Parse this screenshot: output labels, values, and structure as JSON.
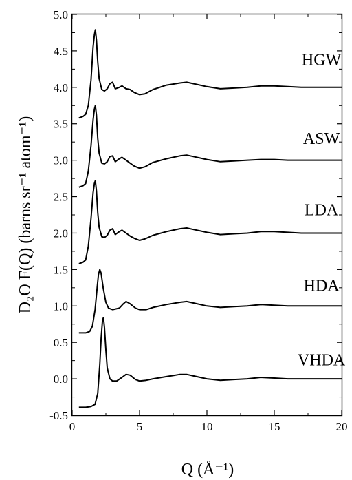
{
  "chart_data": {
    "type": "line",
    "xlabel": "Q (Å⁻¹)",
    "ylabel": "D₂O F(Q) (barns sr⁻¹ atom⁻¹)",
    "xlim": [
      0,
      20
    ],
    "ylim": [
      -0.5,
      5.0
    ],
    "x_ticks": [
      0,
      5,
      10,
      15,
      20
    ],
    "x_tick_labels": [
      "0",
      "5",
      "10",
      "15",
      "20"
    ],
    "y_ticks": [
      -0.5,
      0.0,
      0.5,
      1.0,
      1.5,
      2.0,
      2.5,
      3.0,
      3.5,
      4.0,
      4.5,
      5.0
    ],
    "y_tick_labels": [
      "-0.5",
      "0.0",
      "0.5",
      "1.0",
      "1.5",
      "2.0",
      "2.5",
      "3.0",
      "3.5",
      "4.0",
      "4.5",
      "5.0"
    ],
    "grid": false,
    "legend": "none",
    "series": [
      {
        "name": "HGW",
        "label_at": {
          "x": 18.5,
          "y": 4.38
        },
        "points": [
          [
            0.5,
            3.58
          ],
          [
            0.8,
            3.6
          ],
          [
            1.0,
            3.63
          ],
          [
            1.2,
            3.75
          ],
          [
            1.4,
            4.1
          ],
          [
            1.55,
            4.55
          ],
          [
            1.65,
            4.72
          ],
          [
            1.72,
            4.79
          ],
          [
            1.8,
            4.65
          ],
          [
            1.9,
            4.35
          ],
          [
            2.0,
            4.12
          ],
          [
            2.2,
            3.97
          ],
          [
            2.4,
            3.95
          ],
          [
            2.6,
            3.98
          ],
          [
            2.8,
            4.05
          ],
          [
            3.0,
            4.07
          ],
          [
            3.2,
            3.98
          ],
          [
            3.5,
            4.0
          ],
          [
            3.7,
            4.02
          ],
          [
            4.0,
            3.98
          ],
          [
            4.3,
            3.97
          ],
          [
            4.6,
            3.93
          ],
          [
            5.0,
            3.9
          ],
          [
            5.4,
            3.91
          ],
          [
            6.0,
            3.97
          ],
          [
            7.0,
            4.03
          ],
          [
            8.0,
            4.06
          ],
          [
            8.5,
            4.07
          ],
          [
            9.0,
            4.05
          ],
          [
            10.0,
            4.01
          ],
          [
            11.0,
            3.98
          ],
          [
            12.0,
            3.99
          ],
          [
            13.0,
            4.0
          ],
          [
            14.0,
            4.02
          ],
          [
            15.0,
            4.02
          ],
          [
            16.0,
            4.01
          ],
          [
            17.0,
            4.0
          ],
          [
            18.0,
            4.0
          ],
          [
            19.0,
            4.0
          ],
          [
            20.0,
            4.0
          ]
        ]
      },
      {
        "name": "ASW",
        "label_at": {
          "x": 18.5,
          "y": 3.3
        },
        "points": [
          [
            0.5,
            2.63
          ],
          [
            0.8,
            2.65
          ],
          [
            1.0,
            2.68
          ],
          [
            1.2,
            2.85
          ],
          [
            1.4,
            3.2
          ],
          [
            1.55,
            3.55
          ],
          [
            1.65,
            3.7
          ],
          [
            1.72,
            3.75
          ],
          [
            1.8,
            3.62
          ],
          [
            1.9,
            3.3
          ],
          [
            2.0,
            3.1
          ],
          [
            2.2,
            2.96
          ],
          [
            2.4,
            2.95
          ],
          [
            2.6,
            2.98
          ],
          [
            2.8,
            3.05
          ],
          [
            3.0,
            3.06
          ],
          [
            3.2,
            2.98
          ],
          [
            3.5,
            3.02
          ],
          [
            3.7,
            3.04
          ],
          [
            4.0,
            3.0
          ],
          [
            4.3,
            2.96
          ],
          [
            4.6,
            2.92
          ],
          [
            5.0,
            2.89
          ],
          [
            5.4,
            2.91
          ],
          [
            6.0,
            2.97
          ],
          [
            7.0,
            3.02
          ],
          [
            8.0,
            3.06
          ],
          [
            8.5,
            3.07
          ],
          [
            9.0,
            3.05
          ],
          [
            10.0,
            3.01
          ],
          [
            11.0,
            2.98
          ],
          [
            12.0,
            2.99
          ],
          [
            13.0,
            3.0
          ],
          [
            14.0,
            3.01
          ],
          [
            15.0,
            3.01
          ],
          [
            16.0,
            3.0
          ],
          [
            17.0,
            3.0
          ],
          [
            18.0,
            3.0
          ],
          [
            19.0,
            3.0
          ],
          [
            20.0,
            3.0
          ]
        ]
      },
      {
        "name": "LDA",
        "label_at": {
          "x": 18.5,
          "y": 2.32
        },
        "points": [
          [
            0.5,
            1.58
          ],
          [
            0.8,
            1.6
          ],
          [
            1.0,
            1.63
          ],
          [
            1.2,
            1.82
          ],
          [
            1.4,
            2.2
          ],
          [
            1.55,
            2.55
          ],
          [
            1.65,
            2.68
          ],
          [
            1.72,
            2.72
          ],
          [
            1.8,
            2.58
          ],
          [
            1.9,
            2.28
          ],
          [
            2.0,
            2.08
          ],
          [
            2.2,
            1.95
          ],
          [
            2.4,
            1.94
          ],
          [
            2.6,
            1.97
          ],
          [
            2.8,
            2.04
          ],
          [
            3.0,
            2.06
          ],
          [
            3.2,
            1.98
          ],
          [
            3.5,
            2.02
          ],
          [
            3.7,
            2.04
          ],
          [
            4.0,
            2.0
          ],
          [
            4.3,
            1.96
          ],
          [
            4.6,
            1.93
          ],
          [
            5.0,
            1.9
          ],
          [
            5.4,
            1.92
          ],
          [
            6.0,
            1.97
          ],
          [
            7.0,
            2.02
          ],
          [
            8.0,
            2.06
          ],
          [
            8.5,
            2.07
          ],
          [
            9.0,
            2.05
          ],
          [
            10.0,
            2.01
          ],
          [
            11.0,
            1.98
          ],
          [
            12.0,
            1.99
          ],
          [
            13.0,
            2.0
          ],
          [
            14.0,
            2.02
          ],
          [
            15.0,
            2.02
          ],
          [
            16.0,
            2.01
          ],
          [
            17.0,
            2.0
          ],
          [
            18.0,
            2.0
          ],
          [
            19.0,
            2.0
          ],
          [
            20.0,
            2.0
          ]
        ]
      },
      {
        "name": "HDA",
        "label_at": {
          "x": 18.5,
          "y": 1.28
        },
        "points": [
          [
            0.5,
            0.63
          ],
          [
            1.0,
            0.63
          ],
          [
            1.3,
            0.65
          ],
          [
            1.5,
            0.72
          ],
          [
            1.7,
            0.95
          ],
          [
            1.85,
            1.25
          ],
          [
            1.95,
            1.43
          ],
          [
            2.05,
            1.5
          ],
          [
            2.15,
            1.45
          ],
          [
            2.3,
            1.25
          ],
          [
            2.5,
            1.05
          ],
          [
            2.7,
            0.97
          ],
          [
            3.0,
            0.95
          ],
          [
            3.5,
            0.97
          ],
          [
            3.8,
            1.03
          ],
          [
            4.0,
            1.06
          ],
          [
            4.3,
            1.03
          ],
          [
            4.7,
            0.97
          ],
          [
            5.0,
            0.95
          ],
          [
            5.5,
            0.95
          ],
          [
            6.0,
            0.98
          ],
          [
            7.0,
            1.02
          ],
          [
            8.0,
            1.05
          ],
          [
            8.5,
            1.06
          ],
          [
            9.0,
            1.04
          ],
          [
            10.0,
            1.0
          ],
          [
            11.0,
            0.98
          ],
          [
            12.0,
            0.99
          ],
          [
            13.0,
            1.0
          ],
          [
            14.0,
            1.02
          ],
          [
            15.0,
            1.01
          ],
          [
            16.0,
            1.0
          ],
          [
            17.0,
            1.0
          ],
          [
            18.0,
            1.0
          ],
          [
            19.0,
            1.0
          ],
          [
            20.0,
            1.0
          ]
        ]
      },
      {
        "name": "VHDA",
        "label_at": {
          "x": 18.5,
          "y": 0.26
        },
        "points": [
          [
            0.5,
            -0.39
          ],
          [
            1.0,
            -0.39
          ],
          [
            1.4,
            -0.38
          ],
          [
            1.7,
            -0.35
          ],
          [
            1.9,
            -0.2
          ],
          [
            2.05,
            0.2
          ],
          [
            2.15,
            0.55
          ],
          [
            2.25,
            0.8
          ],
          [
            2.32,
            0.84
          ],
          [
            2.4,
            0.7
          ],
          [
            2.5,
            0.4
          ],
          [
            2.6,
            0.15
          ],
          [
            2.8,
            0.0
          ],
          [
            3.0,
            -0.03
          ],
          [
            3.3,
            -0.03
          ],
          [
            3.7,
            0.02
          ],
          [
            4.0,
            0.06
          ],
          [
            4.3,
            0.05
          ],
          [
            4.7,
            -0.01
          ],
          [
            5.0,
            -0.03
          ],
          [
            5.5,
            -0.02
          ],
          [
            6.0,
            0.0
          ],
          [
            7.0,
            0.03
          ],
          [
            8.0,
            0.06
          ],
          [
            8.5,
            0.06
          ],
          [
            9.0,
            0.04
          ],
          [
            10.0,
            0.0
          ],
          [
            11.0,
            -0.02
          ],
          [
            12.0,
            -0.01
          ],
          [
            13.0,
            0.0
          ],
          [
            14.0,
            0.02
          ],
          [
            15.0,
            0.01
          ],
          [
            16.0,
            0.0
          ],
          [
            17.0,
            0.0
          ],
          [
            18.0,
            0.0
          ],
          [
            19.0,
            0.0
          ],
          [
            20.0,
            0.0
          ]
        ]
      }
    ]
  }
}
